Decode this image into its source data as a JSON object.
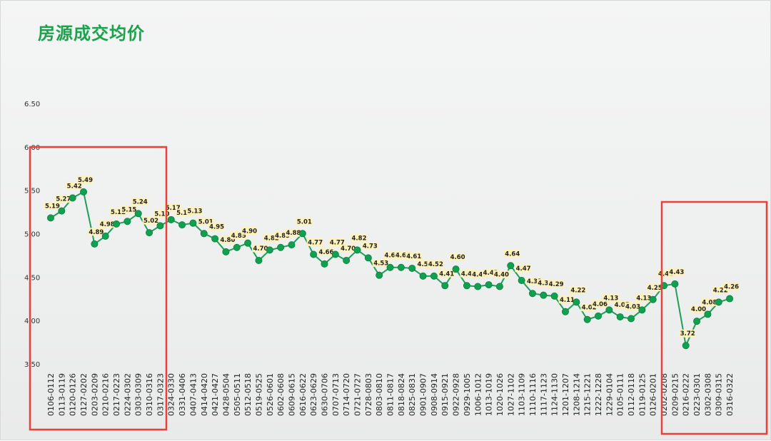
{
  "page": {
    "title": "房源成交均价"
  },
  "colors": {
    "line": "#1e9e57",
    "marker": "#10a050",
    "label_bg": "#fdf0b8",
    "title": "#1aa34a",
    "highlight": "#e8403a"
  },
  "chart_data": {
    "type": "line",
    "title": "房源成交均价",
    "ylim": [
      3.5,
      6.5
    ],
    "yticks": [
      "6.50",
      "6.00",
      "5.50",
      "5.00",
      "4.50",
      "4.00",
      "3.50"
    ],
    "grid": false,
    "categories": [
      "0106-0112",
      "0113-0119",
      "0120-0126",
      "0127-0202",
      "0203-0209",
      "0210-0216",
      "0217-0223",
      "0224-0302",
      "0303-0309",
      "0310-0316",
      "0317-0323",
      "0324-0330",
      "0331-0406",
      "0407-0413",
      "0414-0420",
      "0421-0427",
      "0428-0504",
      "0505-0511",
      "0512-0518",
      "0519-0525",
      "0526-0601",
      "0602-0608",
      "0609-0615",
      "0616-0622",
      "0623-0629",
      "0630-0706",
      "0707-0713",
      "0714-0720",
      "0721-0727",
      "0728-0803",
      "0803-0810",
      "0811-0817",
      "0818-0824",
      "0825-0831",
      "0901-0907",
      "0908-0914",
      "0915-0921",
      "0922-0928",
      "0929-1005",
      "1006-1012",
      "1013-1019",
      "1020-1026",
      "1027-1102",
      "1103-1109",
      "1110-1116",
      "1117-1123",
      "1124-1130",
      "1201-1207",
      "1208-1214",
      "1215-1221",
      "1222-1228",
      "1229-0104",
      "0105-0111",
      "0112-0118",
      "0119-0125",
      "0126-0201",
      "0202-0208",
      "0209-0215",
      "0216-0222",
      "0223-0301",
      "0302-0308",
      "0309-0315",
      "0316-0322"
    ],
    "values": [
      5.19,
      5.27,
      5.42,
      5.49,
      4.89,
      4.98,
      5.12,
      5.15,
      5.24,
      5.02,
      5.1,
      5.17,
      5.11,
      5.13,
      5.01,
      4.95,
      4.8,
      4.85,
      4.9,
      4.7,
      4.82,
      4.85,
      4.88,
      5.01,
      4.77,
      4.66,
      4.77,
      4.7,
      4.82,
      4.73,
      4.53,
      4.62,
      4.62,
      4.61,
      4.52,
      4.52,
      4.41,
      4.6,
      4.41,
      4.4,
      4.42,
      4.4,
      4.64,
      4.47,
      4.32,
      4.3,
      4.29,
      4.11,
      4.22,
      4.02,
      4.06,
      4.13,
      4.05,
      4.03,
      4.13,
      4.25,
      4.41,
      4.43,
      3.72,
      4.0,
      4.08,
      4.22,
      4.26
    ],
    "data_labels": [
      "5.19",
      "5.27",
      "5.42",
      "5.49",
      "4.89",
      "4.98",
      "5.12",
      "5.15",
      "5.24",
      "5.02",
      "5.10",
      "5.17",
      "5.11",
      "5.13",
      "5.01",
      "4.95",
      "4.80",
      "4.85",
      "4.90",
      "4.70",
      "4.82",
      "4.85",
      "4.88",
      "5.01",
      "4.77",
      "4.66",
      "4.77",
      "4.70",
      "4.82",
      "4.73",
      "4.53",
      "4.62",
      "4.62",
      "4.61",
      "4.52",
      "4.52",
      "4.41",
      "4.60",
      "4.41",
      "4.40",
      "4.42",
      "4.40",
      "4.64",
      "4.47",
      "4.32",
      "4.30",
      "4.29",
      "4.11",
      "4.22",
      "4.02",
      "4.06",
      "4.13",
      "4.05",
      "4.03",
      "4.13",
      "4.25",
      "4.41",
      "4.43",
      "3.72",
      "4.00",
      "4.08",
      "4.22",
      "4.26"
    ],
    "highlight_ranges": [
      [
        0,
        10
      ],
      [
        55,
        62
      ]
    ]
  }
}
